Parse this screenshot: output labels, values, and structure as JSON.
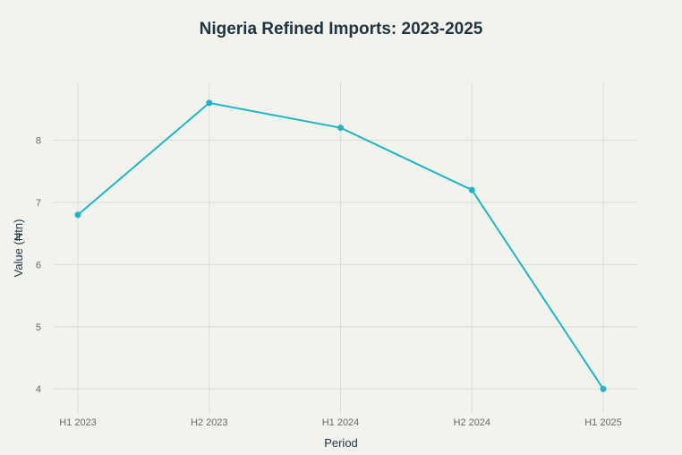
{
  "chart_data": {
    "type": "line",
    "title": "Nigeria Refined Imports: 2023-2025",
    "xlabel": "Period",
    "ylabel": "Value (₦tn)",
    "categories": [
      "H1 2023",
      "H2 2023",
      "H1 2024",
      "H2 2024",
      "H1 2025"
    ],
    "series": [
      {
        "name": "Value",
        "values": [
          6.8,
          8.6,
          8.2,
          7.2,
          4.0
        ],
        "color": "#1fb5c9"
      }
    ],
    "yticks": [
      4,
      5,
      6,
      7,
      8
    ],
    "ylim": [
      3.6,
      8.93
    ],
    "grid": true,
    "legend": "none"
  }
}
